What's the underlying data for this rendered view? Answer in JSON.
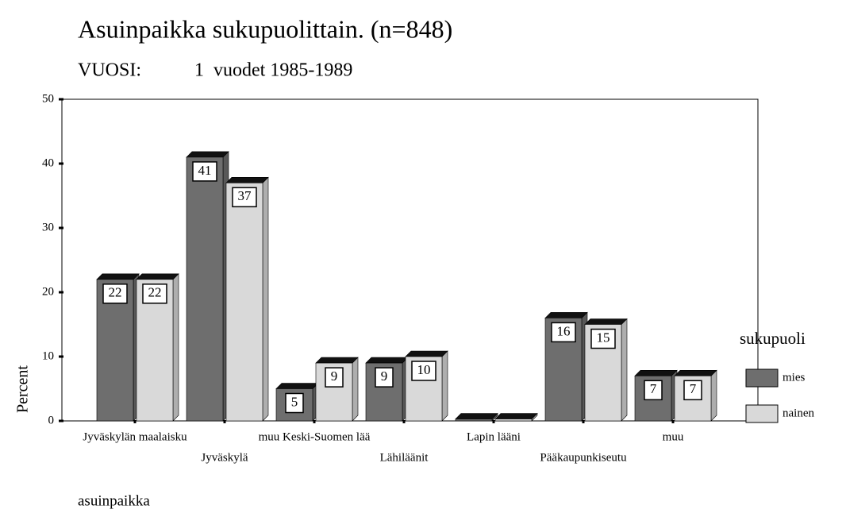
{
  "chart_data": {
    "type": "bar",
    "title": "Asuinpaikka sukupuolittain. (n=848)",
    "subtitle_label": "VUOSI:",
    "subtitle": "1  vuodet 1985-1989",
    "y_axis_label": "Percent",
    "x_axis_label": "asuinpaikka",
    "legend_title": "sukupuoli",
    "categories": [
      "Jyväskylän maalaisku",
      "Jyväskylä",
      "muu Keski-Suomen lää",
      "Lähiläänit",
      "Lapin lääni",
      "Pääkaupunkiseutu",
      "muu"
    ],
    "series": [
      {
        "name": "mies",
        "color": "#6e6e6e",
        "values": [
          22,
          41,
          5,
          9,
          0.3,
          16,
          7
        ],
        "value_labels": [
          "22",
          "41",
          "5",
          "9",
          null,
          "16",
          "7"
        ]
      },
      {
        "name": "nainen",
        "color": "#d9d9d9",
        "values": [
          22,
          37,
          9,
          10,
          0.3,
          15,
          7
        ],
        "value_labels": [
          "22",
          "37",
          "9",
          "10",
          null,
          "15",
          "7"
        ]
      }
    ],
    "ylim": [
      0,
      50
    ],
    "yticks": [
      0,
      10,
      20,
      30,
      40,
      50
    ]
  }
}
